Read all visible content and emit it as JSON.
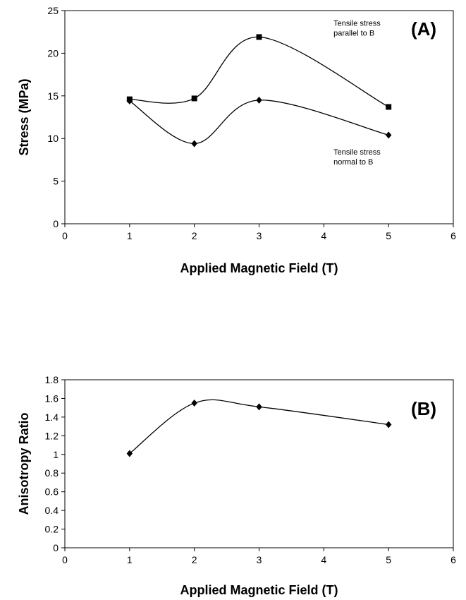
{
  "chart_data": [
    {
      "type": "line",
      "panel_label": "(A)",
      "xlabel": "Applied Magnetic Field (T)",
      "ylabel": "Stress (MPa)",
      "xlim": [
        0,
        6
      ],
      "ylim": [
        0,
        25
      ],
      "xticks": [
        "0",
        "1",
        "2",
        "3",
        "4",
        "5",
        "6"
      ],
      "yticks": [
        "0",
        "5",
        "10",
        "15",
        "20",
        "25"
      ],
      "grid": false,
      "smooth": true,
      "series": [
        {
          "x": [
            1,
            2,
            3,
            5
          ],
          "values": [
            14.6,
            14.7,
            21.9,
            13.7
          ],
          "marker": "square"
        },
        {
          "x": [
            1,
            2,
            3,
            5
          ],
          "values": [
            14.4,
            9.4,
            14.5,
            10.4
          ],
          "marker": "diamond"
        }
      ],
      "annotations": [
        {
          "lines": [
            "Tensile stress",
            "parallel to B"
          ],
          "anchor_x": 4.15,
          "anchor_y": 23.2
        },
        {
          "lines": [
            "Tensile stress",
            "normal to B"
          ],
          "anchor_x": 4.15,
          "anchor_y": 8.1
        }
      ]
    },
    {
      "type": "line",
      "panel_label": "(B)",
      "xlabel": "Applied Magnetic Field (T)",
      "ylabel": "Anisotropy Ratio",
      "xlim": [
        0,
        6
      ],
      "ylim": [
        0,
        1.8
      ],
      "xticks": [
        "0",
        "1",
        "2",
        "3",
        "4",
        "5",
        "6"
      ],
      "yticks": [
        "0",
        "0.2",
        "0.4",
        "0.6",
        "0.8",
        "1",
        "1.2",
        "1.4",
        "1.6",
        "1.8"
      ],
      "grid": false,
      "smooth": true,
      "series": [
        {
          "x": [
            1,
            2,
            3,
            5
          ],
          "values": [
            1.01,
            1.55,
            1.51,
            1.32
          ],
          "marker": "diamond"
        }
      ]
    }
  ]
}
